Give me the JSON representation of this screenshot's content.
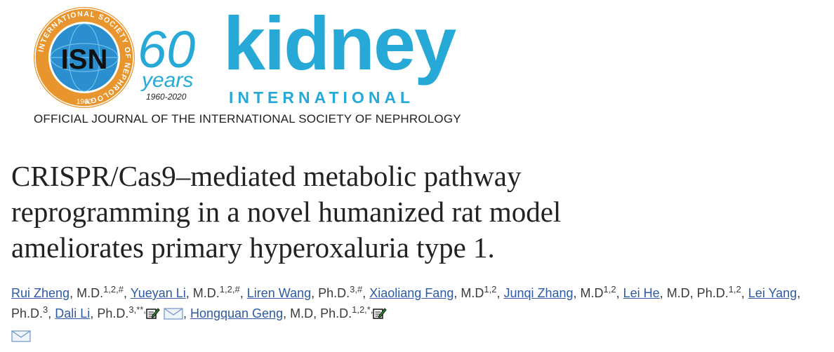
{
  "header": {
    "seal": {
      "center_text": "ISN",
      "ring_text": "INTERNATIONAL SOCIETY OF NEPHROLOGY",
      "year": "1960"
    },
    "anniversary": {
      "number": "60",
      "word": "years",
      "range": "1960-2020"
    },
    "journal_name": "kidney",
    "journal_subname": "INTERNATIONAL",
    "tagline": "OFFICIAL JOURNAL OF THE INTERNATIONAL SOCIETY OF NEPHROLOGY",
    "colors": {
      "brand": "#27a9d8",
      "seal_orange": "#e8952e",
      "seal_blue": "#2b8fcf"
    }
  },
  "article": {
    "title_lines": [
      "CRISPR/Cas9–mediated metabolic pathway",
      "reprogramming in a novel humanized rat model",
      "ameliorates primary hyperoxaluria type 1."
    ]
  },
  "authors": [
    {
      "name": "Rui Zheng",
      "degree": "M.D.",
      "sup": "1,2,#"
    },
    {
      "name": "Yueyan Li",
      "degree": "M.D.",
      "sup": "1,2,#"
    },
    {
      "name": "Liren Wang",
      "degree": "Ph.D.",
      "sup": "3,#"
    },
    {
      "name": "Xiaoliang Fang",
      "degree": "M.D",
      "sup": "1,2"
    },
    {
      "name": "Junqi Zhang",
      "degree": "M.D",
      "sup": "1,2"
    },
    {
      "name": "Lei He",
      "degree": "M.D, Ph.D.",
      "sup": "1,2"
    },
    {
      "name": "Lei Yang",
      "degree": "Ph.D.",
      "sup": "3"
    },
    {
      "name": "Dali Li",
      "degree": "Ph.D.",
      "sup": "3,**,"
    },
    {
      "name": "Hongquan Geng",
      "degree": "M.D, Ph.D.",
      "sup": "1,2,*,"
    }
  ],
  "icons": {
    "edit": "edit-note-icon",
    "mail": "envelope-icon"
  },
  "link_color": "#2d5aa0"
}
